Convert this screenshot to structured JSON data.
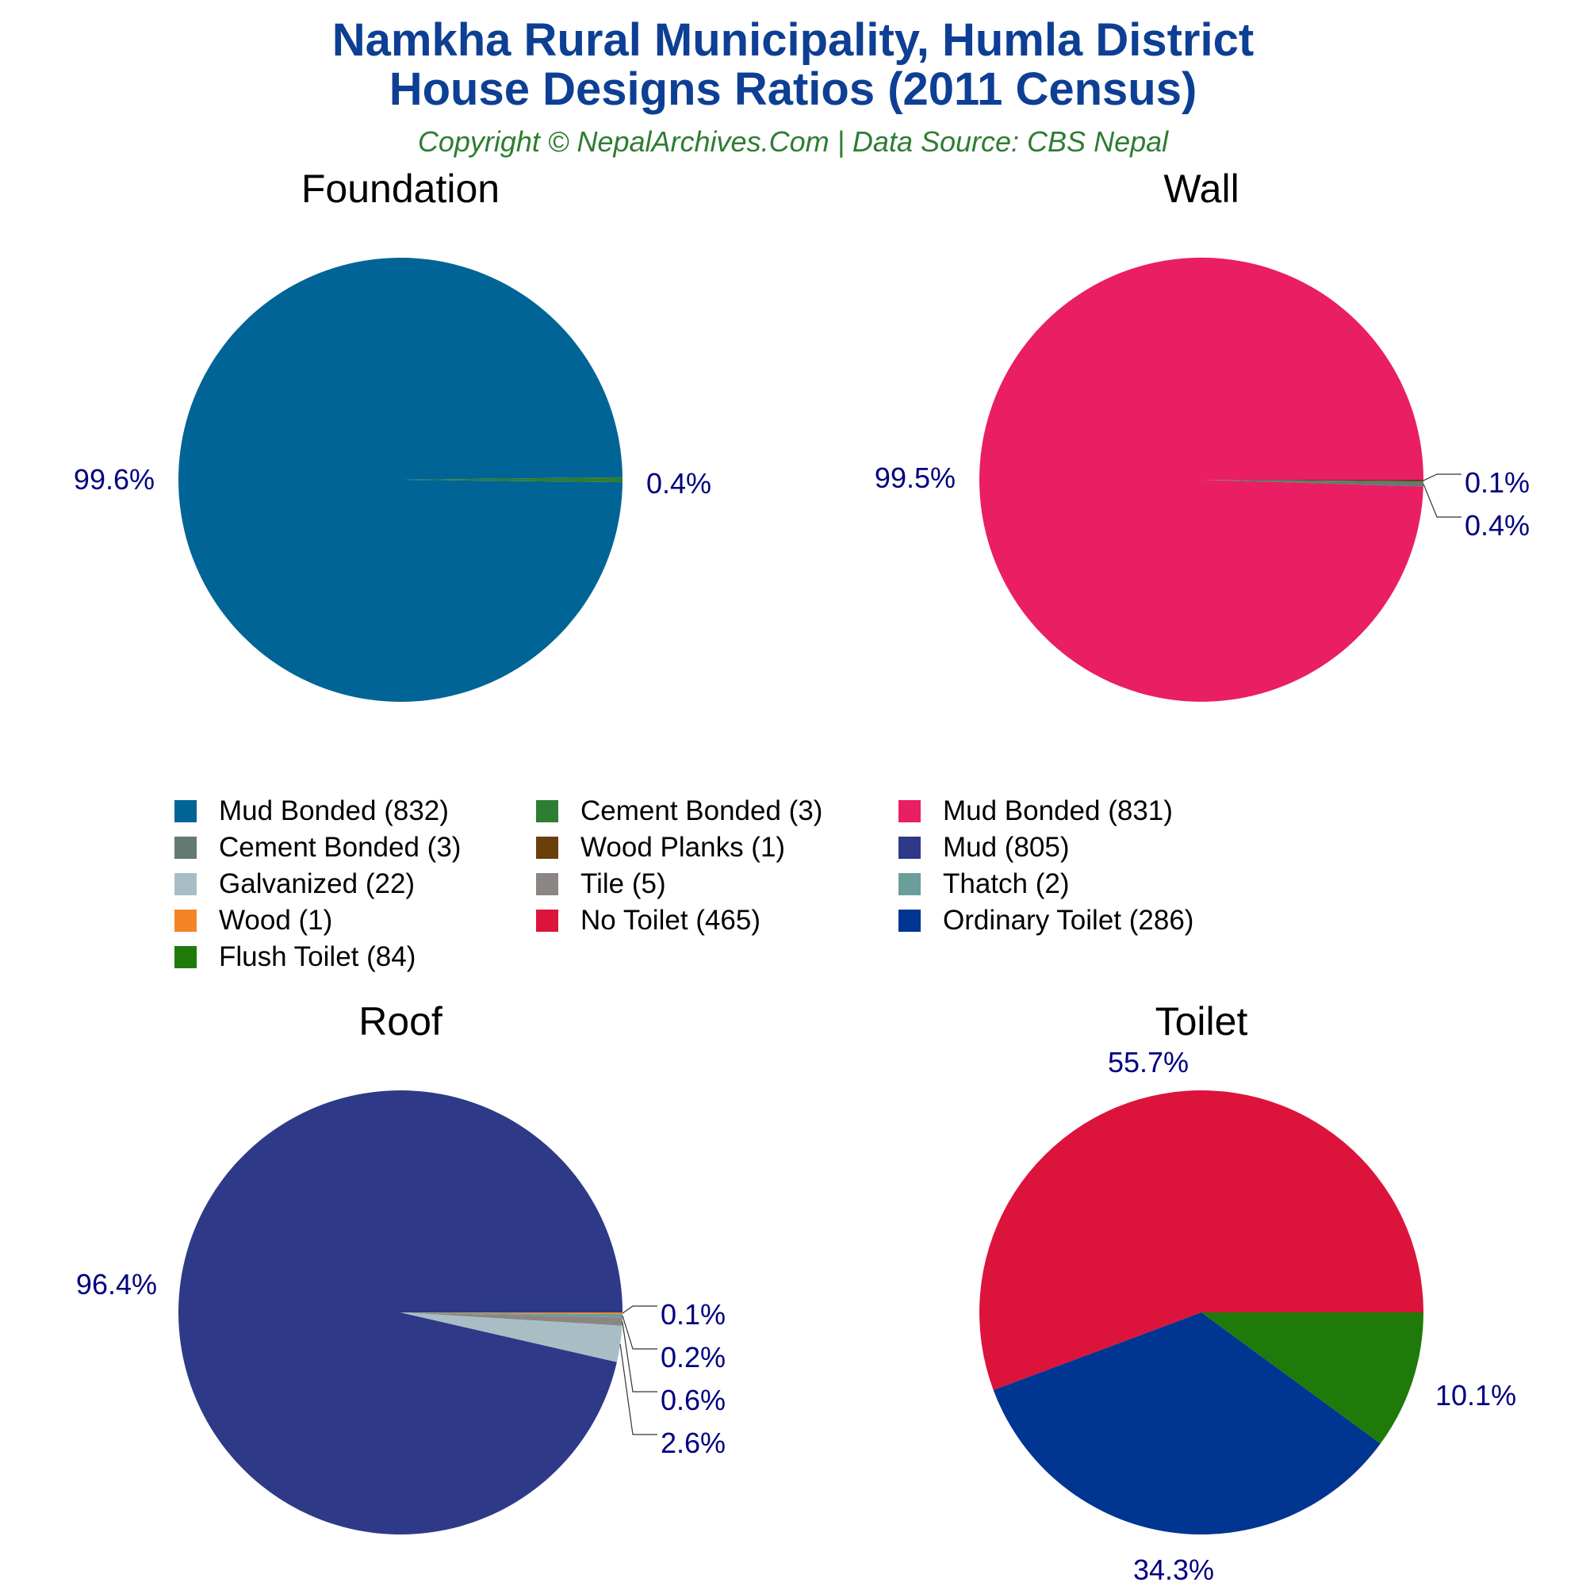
{
  "header": {
    "title_line1": "Namkha Rural Municipality, Humla District",
    "title_line2": "House Designs Ratios (2011 Census)",
    "subtitle": "Copyright © NepalArchives.Com | Data Source: CBS Nepal"
  },
  "chart_data": [
    {
      "type": "pie",
      "title": "Foundation",
      "slices": [
        {
          "label": "Mud Bonded",
          "value": 832,
          "percent": "99.6%",
          "color": "#006496"
        },
        {
          "label": "Cement Bonded",
          "value": 3,
          "percent": "0.4%",
          "color": "#2e7d32"
        }
      ]
    },
    {
      "type": "pie",
      "title": "Wall",
      "slices": [
        {
          "label": "Mud Bonded",
          "value": 831,
          "percent": "99.5%",
          "color": "#e91e63"
        },
        {
          "label": "Wood Planks",
          "value": 1,
          "percent": "0.1%",
          "color": "#6b3f0a"
        },
        {
          "label": "Cement Bonded",
          "value": 3,
          "percent": "0.4%",
          "color": "#637a71"
        }
      ]
    },
    {
      "type": "pie",
      "title": "Roof",
      "slices": [
        {
          "label": "Mud",
          "value": 805,
          "percent": "96.4%",
          "color": "#2e3a87"
        },
        {
          "label": "Wood",
          "value": 1,
          "percent": "0.1%",
          "color": "#f58426"
        },
        {
          "label": "Thatch",
          "value": 2,
          "percent": "0.2%",
          "color": "#6b9e9a"
        },
        {
          "label": "Tile",
          "value": 5,
          "percent": "0.6%",
          "color": "#8b8684"
        },
        {
          "label": "Galvanized",
          "value": 22,
          "percent": "2.6%",
          "color": "#a9bdc5"
        }
      ]
    },
    {
      "type": "pie",
      "title": "Toilet",
      "slices": [
        {
          "label": "No Toilet",
          "value": 465,
          "percent": "55.7%",
          "color": "#dc143c"
        },
        {
          "label": "Ordinary Toilet",
          "value": 286,
          "percent": "34.3%",
          "color": "#003591"
        },
        {
          "label": "Flush Toilet",
          "value": 84,
          "percent": "10.1%",
          "color": "#1e7b0a"
        }
      ]
    }
  ],
  "legend": [
    {
      "text": "Mud Bonded (832)",
      "color": "#006496"
    },
    {
      "text": "Cement Bonded (3)",
      "color": "#2e7d32"
    },
    {
      "text": "Mud Bonded (831)",
      "color": "#e91e63"
    },
    {
      "text": "Cement Bonded (3)",
      "color": "#637a71"
    },
    {
      "text": "Wood Planks (1)",
      "color": "#6b3f0a"
    },
    {
      "text": "Mud (805)",
      "color": "#2e3a87"
    },
    {
      "text": "Galvanized (22)",
      "color": "#a9bdc5"
    },
    {
      "text": "Tile (5)",
      "color": "#8b8684"
    },
    {
      "text": "Thatch (2)",
      "color": "#6b9e9a"
    },
    {
      "text": "Wood (1)",
      "color": "#f58426"
    },
    {
      "text": "No Toilet (465)",
      "color": "#dc143c"
    },
    {
      "text": "Ordinary Toilet (286)",
      "color": "#003591"
    },
    {
      "text": "Flush Toilet (84)",
      "color": "#1e7b0a"
    }
  ],
  "colors": {
    "label_text": "#000080",
    "title_text": "#0d3f94",
    "subtitle_text": "#2e7d32"
  }
}
